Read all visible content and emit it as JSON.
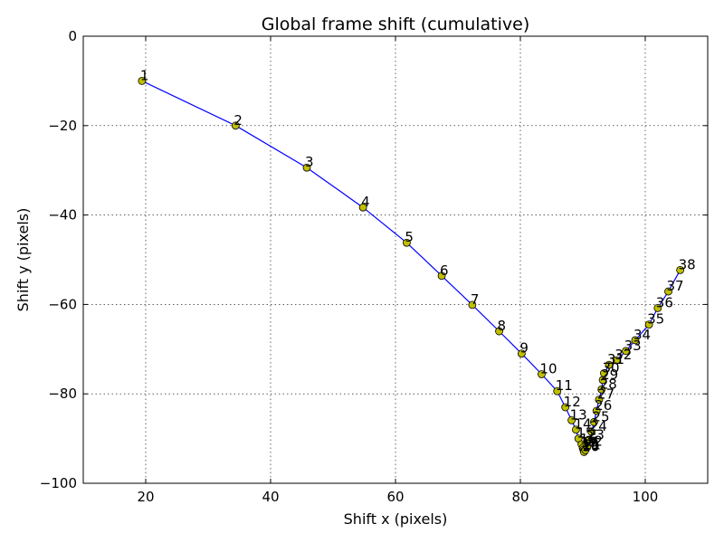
{
  "chart_data": {
    "type": "line",
    "title": "Global frame shift (cumulative)",
    "xlabel": "Shift x (pixels)",
    "ylabel": "Shift y (pixels)",
    "xlim": [
      10,
      110
    ],
    "ylim": [
      -100,
      0
    ],
    "xticks": [
      20,
      40,
      60,
      80,
      100
    ],
    "yticks": [
      0,
      -20,
      -40,
      -60,
      -80,
      -100
    ],
    "xtick_labels": [
      "20",
      "40",
      "60",
      "80",
      "100"
    ],
    "ytick_labels": [
      "0",
      "−20",
      "−40",
      "−60",
      "−80",
      "−100"
    ],
    "grid": true,
    "line_color": "#0000ff",
    "marker_color": "#bfbf00",
    "series": [
      {
        "labels": [
          "1",
          "2",
          "3",
          "4",
          "5",
          "6",
          "7",
          "8",
          "9",
          "10",
          "11",
          "12",
          "13",
          "14",
          "15",
          "16",
          "17",
          "18",
          "19",
          "20",
          "21",
          "22",
          "23",
          "24",
          "25",
          "26",
          "27",
          "28",
          "29",
          "30",
          "31",
          "32",
          "33",
          "34",
          "35",
          "36",
          "37",
          "38"
        ],
        "x": [
          19.4,
          34.4,
          45.8,
          54.8,
          61.8,
          67.4,
          72.3,
          76.6,
          80.2,
          83.4,
          85.9,
          87.2,
          88.2,
          88.9,
          89.3,
          89.8,
          90.0,
          90.1,
          90.2,
          90.2,
          90.4,
          90.7,
          91.0,
          91.4,
          91.8,
          92.2,
          92.6,
          93.0,
          93.2,
          93.4,
          94.2,
          95.4,
          96.9,
          98.4,
          100.6,
          102.0,
          103.7,
          105.6
        ],
        "y": [
          -10.0,
          -20.0,
          -29.4,
          -38.3,
          -46.2,
          -53.6,
          -60.1,
          -66.0,
          -71.0,
          -75.6,
          -79.4,
          -83.0,
          -85.9,
          -88.0,
          -90.0,
          -91.3,
          -92.1,
          -92.5,
          -92.8,
          -93.0,
          -92.6,
          -91.8,
          -90.4,
          -88.5,
          -86.3,
          -83.8,
          -81.3,
          -79.0,
          -76.9,
          -75.4,
          -73.5,
          -72.5,
          -70.4,
          -68.0,
          -64.5,
          -60.8,
          -57.1,
          -52.3
        ]
      }
    ]
  }
}
